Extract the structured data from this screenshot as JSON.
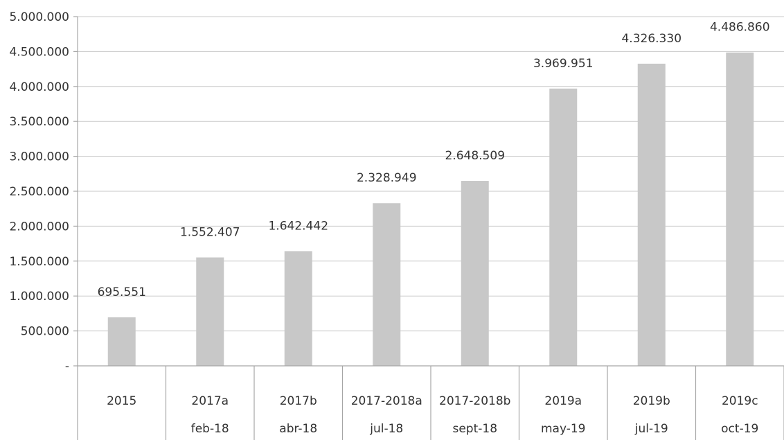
{
  "chart_data": {
    "type": "bar",
    "categories": [
      "2015",
      "2017a",
      "2017b",
      "2017-2018a",
      "2017-2018b",
      "2019a",
      "2019b",
      "2019c"
    ],
    "subcategories": [
      "",
      "feb-18",
      "abr-18",
      "jul-18",
      "sept-18",
      "may-19",
      "jul-19",
      "oct-19"
    ],
    "values": [
      695551,
      1552407,
      1642442,
      2328949,
      2648509,
      3969951,
      4326330,
      4486860
    ],
    "value_labels": [
      "695.551",
      "1.552.407",
      "1.642.442",
      "2.328.949",
      "2.648.509",
      "3.969.951",
      "4.326.330",
      "4.486.860"
    ],
    "ylim": [
      0,
      5000000
    ],
    "y_ticks": [
      0,
      500000,
      1000000,
      1500000,
      2000000,
      2500000,
      3000000,
      3500000,
      4000000,
      4500000,
      5000000
    ],
    "y_tick_labels": [
      "-",
      "500.000",
      "1.000.000",
      "1.500.000",
      "2.000.000",
      "2.500.000",
      "3.000.000",
      "3.500.000",
      "4.000.000",
      "4.500.000",
      "5.000.000"
    ],
    "grid": true,
    "legend": "none",
    "bar_color": "#c8c8c8"
  }
}
